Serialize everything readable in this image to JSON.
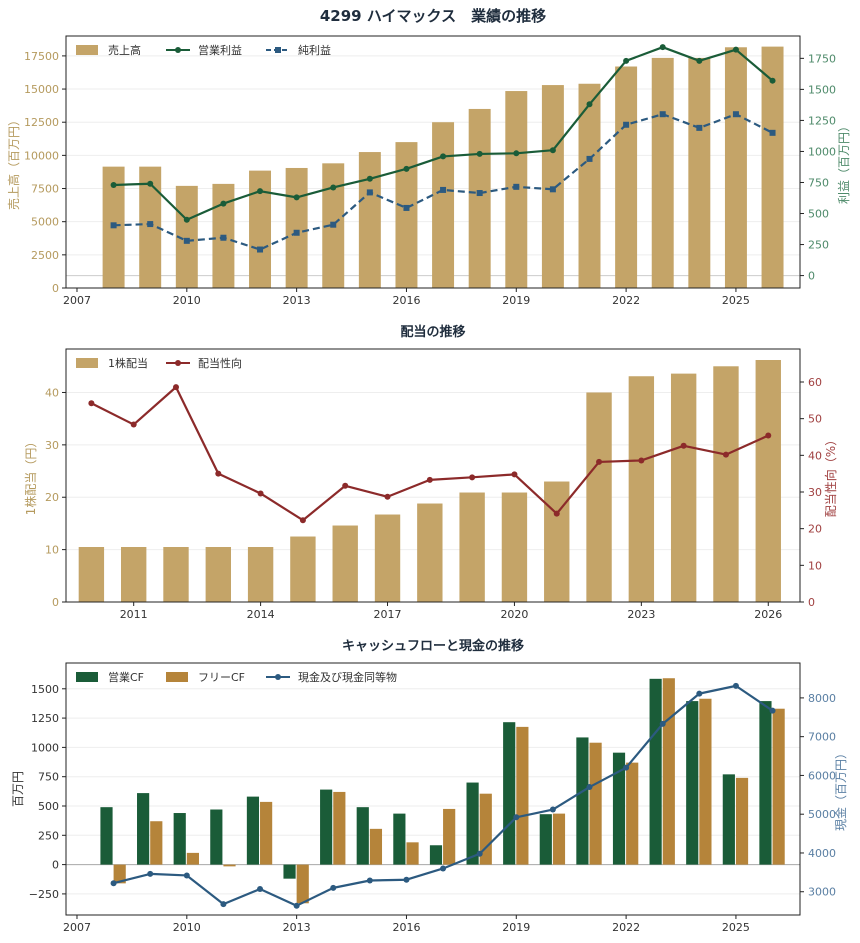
{
  "colors": {
    "sales_bar": "#c4a468",
    "op_profit": "#1a5c38",
    "net_profit": "#2c5a80",
    "dividend_bar": "#c4a468",
    "payout": "#8c2a2a",
    "op_cf": "#1a5c38",
    "free_cf": "#b5843a",
    "cash": "#2c5a80",
    "left_axis_gold": "#b59a5e",
    "right_axis_green": "#4e8a6a",
    "right_axis_red": "#a04040",
    "right_axis_blue": "#5a7fa3",
    "grid": "#eeeeee",
    "zero_line": "#aaaaaa"
  },
  "chart_data": [
    {
      "type": "bar",
      "title": "4299 ハイマックス　業績の推移",
      "ylabel": "売上高（百万円）",
      "y2label": "利益（百万円）",
      "legend_position": "top-left",
      "grid": true,
      "xlim": [
        2006.7,
        2026.75
      ],
      "ylim": [
        0,
        19000
      ],
      "y2lim": [
        -100,
        1930
      ],
      "x_ticks": [
        2007,
        2010,
        2013,
        2016,
        2019,
        2022,
        2025
      ],
      "y_ticks": [
        0,
        2500,
        5000,
        7500,
        10000,
        12500,
        15000,
        17500
      ],
      "y2_ticks": [
        0,
        250,
        500,
        750,
        1000,
        1250,
        1500,
        1750
      ],
      "x": [
        2008,
        2009,
        2010,
        2011,
        2012,
        2013,
        2014,
        2015,
        2016,
        2017,
        2018,
        2019,
        2020,
        2021,
        2022,
        2023,
        2024,
        2025,
        2026
      ],
      "series": [
        {
          "name": "売上高",
          "kind": "bar",
          "axis": "left",
          "values": [
            9150,
            9150,
            7700,
            7850,
            8850,
            9050,
            9400,
            10250,
            11000,
            12500,
            13500,
            14850,
            15300,
            15400,
            16700,
            17350,
            17350,
            18150,
            18200
          ]
        },
        {
          "name": "営業利益",
          "kind": "line",
          "marker": "circle",
          "axis": "right",
          "values": [
            730,
            740,
            450,
            580,
            680,
            630,
            710,
            780,
            860,
            960,
            980,
            985,
            1010,
            1380,
            1730,
            1840,
            1730,
            1820,
            1570
          ]
        },
        {
          "name": "純利益",
          "kind": "line",
          "dash": true,
          "marker": "square",
          "axis": "right",
          "values": [
            405,
            415,
            280,
            305,
            210,
            345,
            410,
            670,
            545,
            690,
            665,
            715,
            695,
            940,
            1215,
            1300,
            1190,
            1300,
            1150
          ]
        }
      ]
    },
    {
      "type": "bar",
      "title": "配当の推移",
      "ylabel": "1株配当（円）",
      "y2label": "配当性向（%）",
      "legend_position": "top-left",
      "grid": true,
      "xlim": [
        2009.4,
        2026.75
      ],
      "ylim": [
        0,
        48.3
      ],
      "y2lim": [
        0,
        69
      ],
      "x_ticks": [
        2011,
        2014,
        2017,
        2020,
        2023,
        2026
      ],
      "y_ticks": [
        0,
        10,
        20,
        30,
        40
      ],
      "y2_ticks": [
        0,
        10,
        20,
        30,
        40,
        50,
        60
      ],
      "x": [
        2010,
        2011,
        2012,
        2013,
        2014,
        2015,
        2016,
        2017,
        2018,
        2019,
        2020,
        2021,
        2022,
        2023,
        2024,
        2025,
        2026
      ],
      "series": [
        {
          "name": "1株配当",
          "kind": "bar",
          "axis": "left",
          "values": [
            10.5,
            10.5,
            10.5,
            10.5,
            10.5,
            12.5,
            14.6,
            16.7,
            18.8,
            20.9,
            20.9,
            23.0,
            40.0,
            43.1,
            43.6,
            45.0,
            46.2
          ]
        },
        {
          "name": "配当性向",
          "kind": "line",
          "marker": "circle",
          "axis": "right",
          "values": [
            54.2,
            48.4,
            58.6,
            35.0,
            29.6,
            22.3,
            31.7,
            28.7,
            33.3,
            34.0,
            34.8,
            24.1,
            38.2,
            38.6,
            42.6,
            40.2,
            45.4
          ]
        }
      ]
    },
    {
      "type": "bar",
      "title": "キャッシュフローと現金の推移",
      "ylabel": "百万円",
      "y2label": "現金（百万円）",
      "legend_position": "top-left",
      "grid": true,
      "xlim": [
        2006.7,
        2026.75
      ],
      "ylim": [
        -430,
        1720
      ],
      "y2lim": [
        2400,
        8900
      ],
      "x_ticks": [
        2007,
        2010,
        2013,
        2016,
        2019,
        2022,
        2025
      ],
      "y_ticks": [
        -250,
        0,
        250,
        500,
        750,
        1000,
        1250,
        1500
      ],
      "y2_ticks": [
        3000,
        4000,
        5000,
        6000,
        7000,
        8000
      ],
      "x": [
        2008,
        2009,
        2010,
        2011,
        2012,
        2013,
        2014,
        2015,
        2016,
        2017,
        2018,
        2019,
        2020,
        2021,
        2022,
        2023,
        2024,
        2025,
        2026
      ],
      "series": [
        {
          "name": "営業CF",
          "kind": "bar",
          "axis": "left",
          "values": [
            490,
            610,
            440,
            470,
            580,
            -120,
            640,
            490,
            435,
            165,
            700,
            1215,
            430,
            1085,
            955,
            1585,
            1395,
            770,
            1395
          ]
        },
        {
          "name": "フリーCF",
          "kind": "bar",
          "axis": "left",
          "values": [
            -160,
            370,
            100,
            -15,
            535,
            -330,
            620,
            305,
            190,
            475,
            605,
            1175,
            435,
            1040,
            870,
            1590,
            1415,
            740,
            1330
          ]
        },
        {
          "name": "現金及び現金同等物",
          "kind": "line",
          "marker": "circle",
          "axis": "right",
          "values": [
            3220,
            3460,
            3420,
            2680,
            3070,
            2640,
            3100,
            3290,
            3310,
            3600,
            3980,
            4920,
            5120,
            5700,
            6200,
            7330,
            8110,
            8310,
            7670
          ]
        }
      ]
    }
  ]
}
